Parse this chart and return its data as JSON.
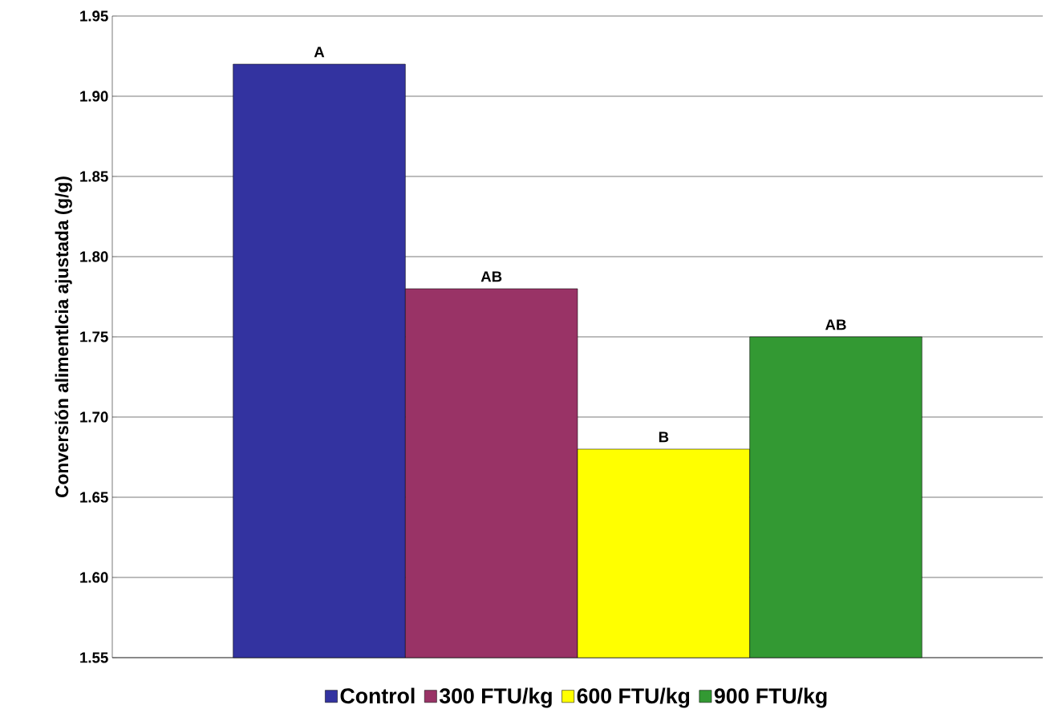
{
  "chart_data": {
    "type": "bar",
    "ylabel": "Conversión alimentlcia ajustada (g/g)",
    "categories": [
      null
    ],
    "series": [
      {
        "name": "Control",
        "color": "#3333a0",
        "values": [
          1.92
        ],
        "value_labels": [
          "A"
        ]
      },
      {
        "name": "300 FTU/kg",
        "color": "#993366",
        "values": [
          1.78
        ],
        "value_labels": [
          "AB"
        ]
      },
      {
        "name": "600 FTU/kg",
        "color": "#ffff00",
        "values": [
          1.68
        ],
        "value_labels": [
          "B"
        ]
      },
      {
        "name": "900 FTU/kg",
        "color": "#339933",
        "values": [
          1.75
        ],
        "value_labels": [
          "AB"
        ]
      }
    ],
    "ylim": [
      1.55,
      1.95
    ],
    "yticks": [
      1.55,
      {
        "value": 1.6,
        "label": "1.60"
      },
      1.65,
      {
        "value": 1.7,
        "label": "1.70"
      },
      1.75,
      {
        "value": 1.8,
        "label": "1.80"
      },
      1.85,
      {
        "value": 1.9,
        "label": "1.90"
      },
      1.95
    ],
    "grid": "y",
    "legend": "bottom"
  }
}
